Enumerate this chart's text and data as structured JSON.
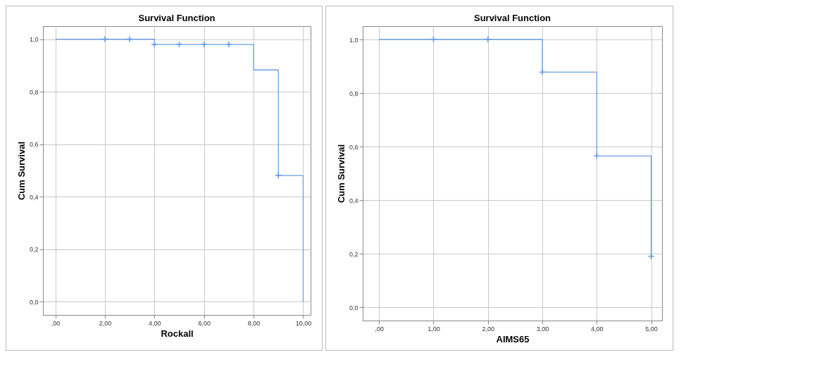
{
  "chart_data": [
    {
      "type": "step",
      "title": "Survival Function",
      "xlabel": "Rockall",
      "ylabel": "Cum Survival",
      "grid": true,
      "xlim": [
        -0.5,
        10.3
      ],
      "ylim": [
        -0.05,
        1.05
      ],
      "xticks": [
        {
          "value": 0,
          "label": ",00"
        },
        {
          "value": 2,
          "label": "2,00"
        },
        {
          "value": 4,
          "label": "4,00"
        },
        {
          "value": 6,
          "label": "6,00"
        },
        {
          "value": 8,
          "label": "8,00"
        },
        {
          "value": 10,
          "label": "10,00"
        }
      ],
      "yticks": [
        {
          "value": 0,
          "label": "0,0"
        },
        {
          "value": 0.2,
          "label": "0,2"
        },
        {
          "value": 0.4,
          "label": "0,4"
        },
        {
          "value": 0.6,
          "label": "0,6"
        },
        {
          "value": 0.8,
          "label": "0,8"
        },
        {
          "value": 1,
          "label": "1,0"
        }
      ],
      "series": [
        {
          "color": "#6a9fe0",
          "x": [
            0,
            4,
            8,
            9,
            10
          ],
          "values": [
            1,
            0.98,
            0.883,
            0.481,
            0
          ]
        },
        {
          "type": "scatter",
          "marker": "cross",
          "color": "#6a9fe0",
          "x": [
            2,
            3,
            4,
            5,
            6,
            7,
            9
          ],
          "values": [
            1,
            1,
            0.98,
            0.98,
            0.98,
            0.98,
            0.481
          ]
        }
      ]
    },
    {
      "type": "step",
      "title": "Survival Function",
      "xlabel": "AIMS65",
      "ylabel": "Cum Survival",
      "grid": true,
      "xlim": [
        -0.3,
        5.2
      ],
      "ylim": [
        -0.05,
        1.05
      ],
      "xticks": [
        {
          "value": 0,
          "label": ",00"
        },
        {
          "value": 1,
          "label": "1,00"
        },
        {
          "value": 2,
          "label": "2,00"
        },
        {
          "value": 3,
          "label": "3,00"
        },
        {
          "value": 4,
          "label": "4,00"
        },
        {
          "value": 5,
          "label": "5,00"
        }
      ],
      "yticks": [
        {
          "value": 0,
          "label": "0,0"
        },
        {
          "value": 0.2,
          "label": "0,2"
        },
        {
          "value": 0.4,
          "label": "0,4"
        },
        {
          "value": 0.6,
          "label": "0,6"
        },
        {
          "value": 0.8,
          "label": "0,8"
        },
        {
          "value": 1,
          "label": "1,0"
        }
      ],
      "series": [
        {
          "color": "#6a9fe0",
          "x": [
            0,
            3,
            4,
            5
          ],
          "values": [
            1,
            0.878,
            0.565,
            0.19
          ]
        },
        {
          "type": "scatter",
          "marker": "cross",
          "color": "#6a9fe0",
          "x": [
            1,
            2,
            3,
            4,
            5
          ],
          "values": [
            1,
            1,
            0.878,
            0.565,
            0.19
          ]
        }
      ]
    }
  ]
}
